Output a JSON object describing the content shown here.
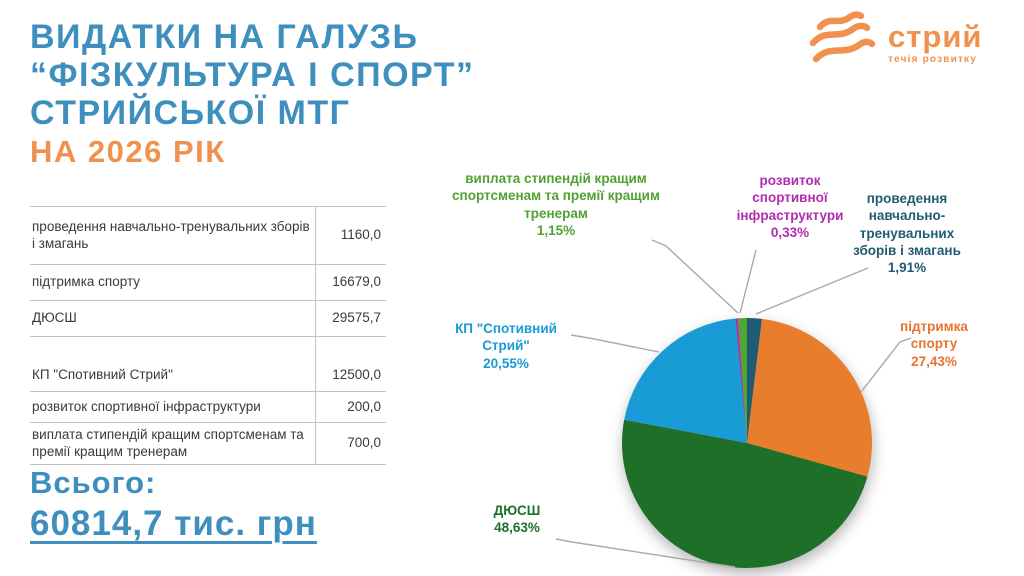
{
  "slide": {
    "title_lines": [
      "ВИДАТКИ НА ГАЛУЗЬ",
      "“ФІЗКУЛЬТУРА І СПОРТ”",
      "СТРИЙСЬКОЇ МТГ"
    ],
    "subtitle": "НА 2026 РІК",
    "total_label": "Всього:",
    "total_value": "60814,7 тис. грн"
  },
  "logo": {
    "name": "стрий",
    "tagline": "течія розвитку",
    "color": "#F0914E"
  },
  "table": {
    "rows": [
      {
        "label": "проведення навчально-тренувальних зборів і змагань",
        "value": "1160,0"
      },
      {
        "label": "підтримка спорту",
        "value": "16679,0"
      },
      {
        "label": "ДЮСШ",
        "value": "29575,7"
      },
      {
        "label": "КП \"Спотивний Стрий\"",
        "value": "12500,0"
      },
      {
        "label": "розвиток спортивної інфраструктури",
        "value": "200,0"
      },
      {
        "label": "виплата стипендій кращим спортсменам та премії кращим тренерам",
        "value": "700,0"
      }
    ],
    "unit": "тис. грн"
  },
  "chart_data": {
    "type": "pie",
    "title": "",
    "direction": "clockwise",
    "start_angle_deg": 0,
    "legend_position": "callout-labels",
    "slices": [
      {
        "label": "проведення навчально-тренувальних зборів і змагань",
        "pct_label": "1,91%",
        "value": 1.91,
        "amount": 1160.0,
        "color": "#1F5C73"
      },
      {
        "label": "підтримка спорту",
        "pct_label": "27,43%",
        "value": 27.43,
        "amount": 16679.0,
        "color": "#E87D2E"
      },
      {
        "label": "ДЮСШ",
        "pct_label": "48,63%",
        "value": 48.63,
        "amount": 29575.7,
        "color": "#1E7028"
      },
      {
        "label": "КП \"Спотивний Стрий\"",
        "pct_label": "20,55%",
        "value": 20.55,
        "amount": 12500.0,
        "color": "#199CD6"
      },
      {
        "label": "розвиток спортивної інфраструктури",
        "pct_label": "0,33%",
        "value": 0.33,
        "amount": 200.0,
        "color": "#B02CB0"
      },
      {
        "label": "виплата стипендій кращим спортсменам та премії кращим тренерам",
        "pct_label": "1,15%",
        "value": 1.15,
        "amount": 700.0,
        "color": "#4CA831"
      }
    ]
  },
  "colors": {
    "title_blue": "#3E8EBE",
    "accent_orange": "#F0914E",
    "leader_line_gray": "#a9a9a9",
    "table_border": "#c3c3c3"
  }
}
